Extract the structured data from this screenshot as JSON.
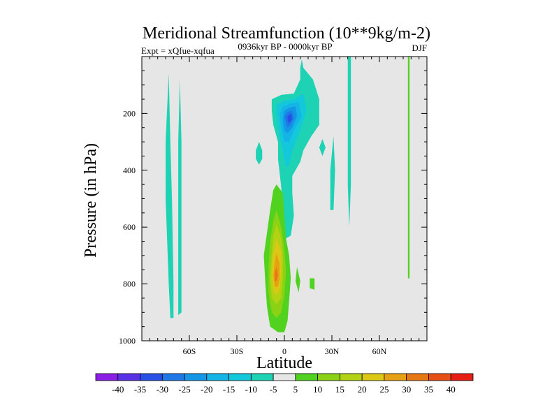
{
  "chart_data": {
    "type": "heatmap",
    "title": "Meridional Streamfunction (10**9kg/m-2)",
    "subtitle_left": "Expt = xQfue-xqfua",
    "subtitle_center": "0936kyr BP - 0000kyr BP",
    "subtitle_right": "DJF",
    "xlabel": "Latitude",
    "ylabel": "Pressure (in hPa)",
    "xlim": [
      -90,
      90
    ],
    "ylim": [
      0,
      1000
    ],
    "y_inverted": true,
    "x_ticks": [
      {
        "value": -60,
        "label": "60S"
      },
      {
        "value": -30,
        "label": "30S"
      },
      {
        "value": 0,
        "label": "0"
      },
      {
        "value": 30,
        "label": "30N"
      },
      {
        "value": 60,
        "label": "60N"
      }
    ],
    "y_ticks": [
      {
        "value": 200,
        "label": "200"
      },
      {
        "value": 400,
        "label": "400"
      },
      {
        "value": 600,
        "label": "600"
      },
      {
        "value": 800,
        "label": "800"
      },
      {
        "value": 1000,
        "label": "1000"
      }
    ],
    "background_color": "#e6e6e6",
    "levels": [
      -40,
      -35,
      -30,
      -25,
      -20,
      -15,
      -10,
      -5,
      5,
      10,
      15,
      20,
      25,
      30,
      35,
      40
    ],
    "colors": [
      "#8a1ee6",
      "#5a32e6",
      "#2850e6",
      "#1e78e6",
      "#1496e6",
      "#14b4e6",
      "#14c8dc",
      "#1ed2b4",
      "#e6e6e6",
      "#50d21e",
      "#8cd214",
      "#b4d214",
      "#dcc814",
      "#e6a014",
      "#e67814",
      "#e65014",
      "#e61e14"
    ],
    "features": [
      {
        "name": "hadley-negative-cell",
        "rings": [
          {
            "value": -7,
            "pts": [
              [
                11,
                10
              ],
              [
                12,
                40
              ],
              [
                18,
                80
              ],
              [
                22,
                150
              ],
              [
                22,
                240
              ],
              [
                17,
                280
              ],
              [
                12,
                330
              ],
              [
                10,
                370
              ],
              [
                5,
                420
              ],
              [
                5,
                480
              ],
              [
                6,
                560
              ],
              [
                4,
                630
              ],
              [
                1,
                640
              ],
              [
                -1,
                560
              ],
              [
                -2,
                460
              ],
              [
                -4,
                360
              ],
              [
                -4,
                300
              ],
              [
                -7,
                240
              ],
              [
                -8,
                190
              ],
              [
                -8,
                150
              ],
              [
                -2,
                135
              ],
              [
                6,
                130
              ],
              [
                10,
                80
              ],
              [
                10,
                40
              ]
            ]
          },
          {
            "value": -12,
            "pts": [
              [
                12,
                130
              ],
              [
                14,
                190
              ],
              [
                10,
                260
              ],
              [
                5,
                330
              ],
              [
                3,
                380
              ],
              [
                1,
                390
              ],
              [
                -1,
                330
              ],
              [
                -3,
                280
              ],
              [
                -5,
                200
              ],
              [
                -5,
                170
              ],
              [
                0,
                155
              ],
              [
                6,
                150
              ]
            ]
          },
          {
            "value": -17,
            "pts": [
              [
                9,
                160
              ],
              [
                11,
                210
              ],
              [
                6,
                260
              ],
              [
                3,
                300
              ],
              [
                0,
                300
              ],
              [
                -2,
                250
              ],
              [
                -3,
                200
              ],
              [
                -1,
                175
              ],
              [
                4,
                165
              ]
            ]
          },
          {
            "value": -22,
            "pts": [
              [
                7,
                175
              ],
              [
                8,
                210
              ],
              [
                5,
                250
              ],
              [
                2,
                270
              ],
              [
                0,
                260
              ],
              [
                -1,
                220
              ],
              [
                0,
                190
              ],
              [
                3,
                180
              ]
            ]
          },
          {
            "value": -27,
            "pts": [
              [
                5,
                190
              ],
              [
                6,
                215
              ],
              [
                4,
                240
              ],
              [
                2,
                250
              ],
              [
                1,
                235
              ],
              [
                0,
                210
              ],
              [
                2,
                195
              ]
            ]
          },
          {
            "value": -32,
            "pts": [
              [
                4,
                200
              ],
              [
                5,
                220
              ],
              [
                3,
                235
              ],
              [
                2,
                225
              ],
              [
                2,
                210
              ]
            ]
          }
        ]
      },
      {
        "name": "hadley-positive-cell",
        "rings": [
          {
            "value": 7,
            "pts": [
              [
                -5,
                450
              ],
              [
                -1,
                480
              ],
              [
                0,
                560
              ],
              [
                1,
                640
              ],
              [
                3,
                700
              ],
              [
                4,
                780
              ],
              [
                3,
                860
              ],
              [
                2,
                930
              ],
              [
                0,
                970
              ],
              [
                -4,
                970
              ],
              [
                -9,
                950
              ],
              [
                -11,
                880
              ],
              [
                -12,
                800
              ],
              [
                -13,
                700
              ],
              [
                -11,
                620
              ],
              [
                -9,
                540
              ],
              [
                -7,
                470
              ]
            ]
          },
          {
            "value": 12,
            "pts": [
              [
                -5,
                540
              ],
              [
                -2,
                600
              ],
              [
                0,
                680
              ],
              [
                1,
                760
              ],
              [
                0,
                840
              ],
              [
                -2,
                900
              ],
              [
                -5,
                920
              ],
              [
                -8,
                900
              ],
              [
                -10,
                830
              ],
              [
                -10,
                740
              ],
              [
                -9,
                650
              ],
              [
                -7,
                580
              ]
            ]
          },
          {
            "value": 17,
            "pts": [
              [
                -5,
                590
              ],
              [
                -2,
                640
              ],
              [
                -1,
                700
              ],
              [
                -1,
                780
              ],
              [
                -2,
                850
              ],
              [
                -5,
                870
              ],
              [
                -8,
                850
              ],
              [
                -9,
                780
              ],
              [
                -8,
                700
              ],
              [
                -7,
                630
              ]
            ]
          },
          {
            "value": 22,
            "pts": [
              [
                -5,
                640
              ],
              [
                -2,
                690
              ],
              [
                -2,
                760
              ],
              [
                -3,
                820
              ],
              [
                -5,
                840
              ],
              [
                -7,
                820
              ],
              [
                -8,
                760
              ],
              [
                -7,
                690
              ]
            ]
          },
          {
            "value": 27,
            "pts": [
              [
                -5,
                690
              ],
              [
                -3,
                730
              ],
              [
                -3,
                780
              ],
              [
                -4,
                810
              ],
              [
                -6,
                810
              ],
              [
                -7,
                770
              ],
              [
                -6,
                720
              ]
            ]
          },
          {
            "value": 32,
            "pts": [
              [
                -5,
                740
              ],
              [
                -4,
                770
              ],
              [
                -5,
                790
              ],
              [
                -6,
                790
              ],
              [
                -6,
                760
              ]
            ]
          }
        ]
      },
      {
        "name": "positive-patch-eq",
        "rings": [
          {
            "value": 7,
            "pts": [
              [
                8,
                740
              ],
              [
                10,
                790
              ],
              [
                9,
                830
              ],
              [
                7,
                790
              ]
            ]
          }
        ]
      },
      {
        "name": "positive-patch-18n",
        "rings": [
          {
            "value": 7,
            "pts": [
              [
                16,
                780
              ],
              [
                19,
                780
              ],
              [
                19,
                820
              ],
              [
                16,
                815
              ]
            ]
          }
        ]
      },
      {
        "name": "negative-patch-15s",
        "rings": [
          {
            "value": -7,
            "pts": [
              [
                -16,
                300
              ],
              [
                -14,
                330
              ],
              [
                -14,
                360
              ],
              [
                -16,
                380
              ],
              [
                -18,
                360
              ],
              [
                -18,
                330
              ]
            ]
          }
        ]
      },
      {
        "name": "negative-strip-65s",
        "rings": [
          {
            "value": -7,
            "pts": [
              [
                -73,
                60
              ],
              [
                -72,
                300
              ],
              [
                -71,
                500
              ],
              [
                -70,
                800
              ],
              [
                -70,
                920
              ],
              [
                -72,
                920
              ],
              [
                -73,
                800
              ],
              [
                -75,
                500
              ],
              [
                -75,
                300
              ]
            ]
          }
        ]
      },
      {
        "name": "negative-strip-70s",
        "rings": [
          {
            "value": -7,
            "pts": [
              [
                -66,
                80
              ],
              [
                -65,
                300
              ],
              [
                -65,
                500
              ],
              [
                -65,
                700
              ],
              [
                -65,
                900
              ],
              [
                -67,
                910
              ],
              [
                -67,
                700
              ],
              [
                -67,
                500
              ],
              [
                -67,
                300
              ]
            ]
          }
        ]
      },
      {
        "name": "negative-patch-24n",
        "rings": [
          {
            "value": -7,
            "pts": [
              [
                24,
                290
              ],
              [
                26,
                320
              ],
              [
                24,
                350
              ],
              [
                22,
                320
              ]
            ]
          }
        ]
      },
      {
        "name": "negative-strip-30n",
        "rings": [
          {
            "value": -7,
            "pts": [
              [
                31,
                280
              ],
              [
                32,
                400
              ],
              [
                31,
                540
              ],
              [
                29,
                540
              ],
              [
                29,
                400
              ]
            ]
          }
        ]
      },
      {
        "name": "negative-strip-41n",
        "rings": [
          {
            "value": -7,
            "pts": [
              [
                40,
                0
              ],
              [
                42,
                0
              ],
              [
                42,
                200
              ],
              [
                42,
                450
              ],
              [
                41,
                600
              ],
              [
                40,
                450
              ],
              [
                40,
                200
              ]
            ]
          }
        ]
      },
      {
        "name": "positive-strip-78n",
        "rings": [
          {
            "value": 7,
            "pts": [
              [
                78,
                0
              ],
              [
                79,
                0
              ],
              [
                79,
                300
              ],
              [
                79,
                500
              ],
              [
                79,
                780
              ],
              [
                78,
                780
              ],
              [
                78,
                500
              ],
              [
                78,
                300
              ]
            ]
          }
        ]
      }
    ]
  }
}
